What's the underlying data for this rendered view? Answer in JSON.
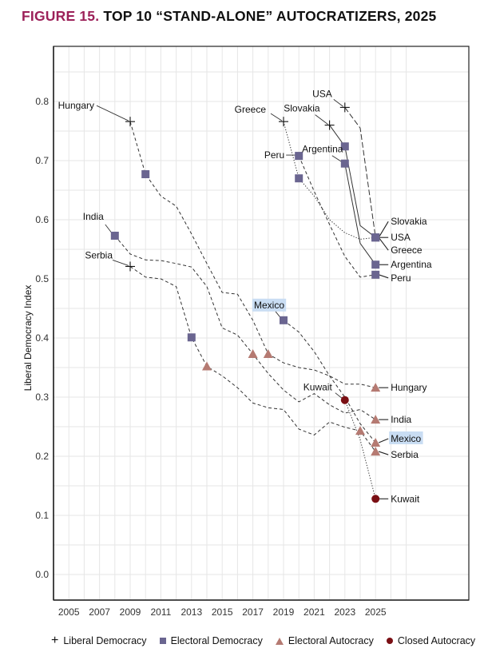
{
  "title": {
    "figure_label": "FIGURE 15.",
    "text": "TOP 10 “STAND-ALONE” AUTOCRATIZERS, 2025"
  },
  "colors": {
    "figure_label": "#9c2159",
    "electoral_democracy": "#6a6590",
    "electoral_autocracy": "#b57a72",
    "closed_autocracy": "#7a0f14",
    "highlight": "#c9ddf3"
  },
  "chart_data": {
    "type": "line",
    "title": "TOP 10 “STAND-ALONE” AUTOCRATIZERS, 2025",
    "xlabel": "",
    "ylabel": "Liberal Democracy Index",
    "xlim": [
      2004,
      2030
    ],
    "ylim": [
      -0.045,
      0.895
    ],
    "x_ticks": [
      2005,
      2007,
      2009,
      2011,
      2013,
      2015,
      2017,
      2019,
      2021,
      2023,
      2025
    ],
    "x_tick_labels": [
      "2005",
      "2007",
      "2009",
      "2011",
      "2013",
      "2015",
      "2017",
      "2019",
      "2021",
      "2023",
      "2025"
    ],
    "y_ticks": [
      0.0,
      0.1,
      0.2,
      0.3,
      0.4,
      0.5,
      0.6,
      0.7,
      0.8
    ],
    "y_tick_labels": [
      "0.0",
      "0.1",
      "0.2",
      "0.3",
      "0.4",
      "0.5",
      "0.6",
      "0.7",
      "0.8"
    ],
    "grid": true,
    "legend": {
      "position": "bottom",
      "entries": [
        {
          "label": "Liberal Democracy",
          "marker": "cross"
        },
        {
          "label": "Electoral Democracy",
          "marker": "square"
        },
        {
          "label": "Electoral Autocracy",
          "marker": "triangle"
        },
        {
          "label": "Closed Autocracy",
          "marker": "circle"
        }
      ]
    },
    "series": [
      {
        "name": "Hungary",
        "style": "dashed",
        "highlight": false,
        "points": [
          [
            2009,
            0.766
          ],
          [
            2010,
            0.677
          ],
          [
            2011,
            0.64
          ],
          [
            2012,
            0.623
          ],
          [
            2013,
            0.576
          ],
          [
            2014,
            0.526
          ],
          [
            2015,
            0.477
          ],
          [
            2016,
            0.474
          ],
          [
            2017,
            0.43
          ],
          [
            2018,
            0.373
          ],
          [
            2019,
            0.358
          ],
          [
            2020,
            0.35
          ],
          [
            2021,
            0.346
          ],
          [
            2022,
            0.336
          ],
          [
            2023,
            0.322
          ],
          [
            2024,
            0.322
          ],
          [
            2025,
            0.316
          ]
        ],
        "markers": [
          [
            2009,
            0.766,
            "cross"
          ],
          [
            2010,
            0.677,
            "square"
          ],
          [
            2018,
            0.373,
            "triangle"
          ],
          [
            2025,
            0.316,
            "triangle"
          ]
        ],
        "start_label": {
          "year": 2009,
          "value": 0.766,
          "side": "left"
        },
        "end_label": {
          "value": 0.316
        }
      },
      {
        "name": "India",
        "style": "dashed",
        "highlight": false,
        "points": [
          [
            2008,
            0.573
          ],
          [
            2009,
            0.542
          ],
          [
            2010,
            0.532
          ],
          [
            2011,
            0.531
          ],
          [
            2012,
            0.526
          ],
          [
            2013,
            0.52
          ],
          [
            2014,
            0.487
          ],
          [
            2015,
            0.417
          ],
          [
            2016,
            0.405
          ],
          [
            2017,
            0.373
          ],
          [
            2018,
            0.34
          ],
          [
            2019,
            0.312
          ],
          [
            2020,
            0.292
          ],
          [
            2021,
            0.306
          ],
          [
            2022,
            0.287
          ],
          [
            2023,
            0.273
          ],
          [
            2024,
            0.279
          ],
          [
            2025,
            0.262
          ]
        ],
        "markers": [
          [
            2008,
            0.573,
            "square"
          ],
          [
            2017,
            0.373,
            "triangle"
          ],
          [
            2025,
            0.262,
            "triangle"
          ]
        ],
        "start_label": {
          "year": 2008,
          "value": 0.573,
          "side": "left"
        },
        "end_label": {
          "value": 0.262
        }
      },
      {
        "name": "Serbia",
        "style": "dashed",
        "highlight": false,
        "points": [
          [
            2009,
            0.521
          ],
          [
            2010,
            0.503
          ],
          [
            2011,
            0.5
          ],
          [
            2012,
            0.487
          ],
          [
            2013,
            0.401
          ],
          [
            2014,
            0.352
          ],
          [
            2015,
            0.336
          ],
          [
            2016,
            0.316
          ],
          [
            2017,
            0.29
          ],
          [
            2018,
            0.282
          ],
          [
            2019,
            0.279
          ],
          [
            2020,
            0.246
          ],
          [
            2021,
            0.236
          ],
          [
            2022,
            0.258
          ],
          [
            2023,
            0.249
          ],
          [
            2024,
            0.243
          ],
          [
            2025,
            0.208
          ]
        ],
        "markers": [
          [
            2009,
            0.521,
            "cross"
          ],
          [
            2013,
            0.401,
            "square"
          ],
          [
            2014,
            0.352,
            "triangle"
          ],
          [
            2024,
            0.243,
            "triangle"
          ],
          [
            2025,
            0.208,
            "triangle"
          ]
        ],
        "start_label": {
          "year": 2009,
          "value": 0.521,
          "side": "left"
        },
        "end_label": {
          "value": 0.208
        }
      },
      {
        "name": "Mexico",
        "style": "dashed",
        "highlight": true,
        "points": [
          [
            2019,
            0.43
          ],
          [
            2020,
            0.41
          ],
          [
            2021,
            0.377
          ],
          [
            2022,
            0.336
          ],
          [
            2023,
            0.3
          ],
          [
            2024,
            0.255
          ],
          [
            2025,
            0.223
          ]
        ],
        "markers": [
          [
            2019,
            0.43,
            "square"
          ],
          [
            2025,
            0.223,
            "triangle"
          ]
        ],
        "start_label": {
          "year": 2019,
          "value": 0.43,
          "side": "left-up"
        },
        "end_label": {
          "value": 0.223
        }
      },
      {
        "name": "Kuwait",
        "style": "dotted",
        "highlight": false,
        "points": [
          [
            2023,
            0.295
          ],
          [
            2024,
            0.228
          ],
          [
            2025,
            0.128
          ]
        ],
        "markers": [
          [
            2023,
            0.295,
            "circle"
          ],
          [
            2025,
            0.128,
            "circle"
          ]
        ],
        "start_label": {
          "year": 2023,
          "value": 0.295,
          "side": "left-up"
        },
        "end_label": {
          "value": 0.128
        }
      },
      {
        "name": "Greece",
        "style": "dotted",
        "highlight": false,
        "points": [
          [
            2019,
            0.766
          ],
          [
            2020,
            0.67
          ],
          [
            2021,
            0.64
          ],
          [
            2022,
            0.6
          ],
          [
            2023,
            0.578
          ],
          [
            2024,
            0.567
          ],
          [
            2025,
            0.57
          ]
        ],
        "markers": [
          [
            2019,
            0.766,
            "cross"
          ],
          [
            2020,
            0.67,
            "square"
          ],
          [
            2025,
            0.57,
            "square"
          ]
        ],
        "start_label": {
          "year": 2019,
          "value": 0.766,
          "side": "left-up"
        },
        "end_label": {
          "value": 0.57
        }
      },
      {
        "name": "Peru",
        "style": "dashed",
        "highlight": false,
        "points": [
          [
            2020,
            0.708
          ],
          [
            2021,
            0.648
          ],
          [
            2022,
            0.592
          ],
          [
            2023,
            0.538
          ],
          [
            2024,
            0.503
          ],
          [
            2025,
            0.507
          ]
        ],
        "markers": [
          [
            2020,
            0.708,
            "square"
          ],
          [
            2025,
            0.507,
            "square"
          ]
        ],
        "start_label": {
          "year": 2020,
          "value": 0.708,
          "side": "left"
        },
        "end_label": {
          "value": 0.507
        }
      },
      {
        "name": "Argentina",
        "style": "solid",
        "highlight": false,
        "points": [
          [
            2023,
            0.695
          ],
          [
            2024,
            0.56
          ],
          [
            2025,
            0.524
          ]
        ],
        "markers": [
          [
            2023,
            0.695,
            "square"
          ],
          [
            2025,
            0.524,
            "square"
          ]
        ],
        "start_label": {
          "year": 2023,
          "value": 0.695,
          "side": "left-up"
        },
        "end_label": {
          "value": 0.524
        }
      },
      {
        "name": "Slovakia",
        "style": "solid",
        "highlight": false,
        "points": [
          [
            2022,
            0.76
          ],
          [
            2023,
            0.724
          ],
          [
            2024,
            0.59
          ],
          [
            2025,
            0.57
          ]
        ],
        "markers": [
          [
            2022,
            0.76,
            "cross"
          ],
          [
            2023,
            0.724,
            "square"
          ],
          [
            2025,
            0.57,
            "square"
          ]
        ],
        "start_label": {
          "year": 2022,
          "value": 0.76,
          "side": "left-up"
        },
        "end_label": {
          "value": 0.57
        }
      },
      {
        "name": "USA",
        "style": "longdash",
        "highlight": false,
        "points": [
          [
            2023,
            0.79
          ],
          [
            2024,
            0.755
          ],
          [
            2025,
            0.57
          ]
        ],
        "markers": [
          [
            2023,
            0.79,
            "cross"
          ],
          [
            2025,
            0.57,
            "square"
          ]
        ],
        "start_label": {
          "year": 2023,
          "value": 0.79,
          "side": "left-up"
        },
        "end_label": {
          "value": 0.57
        }
      }
    ]
  }
}
